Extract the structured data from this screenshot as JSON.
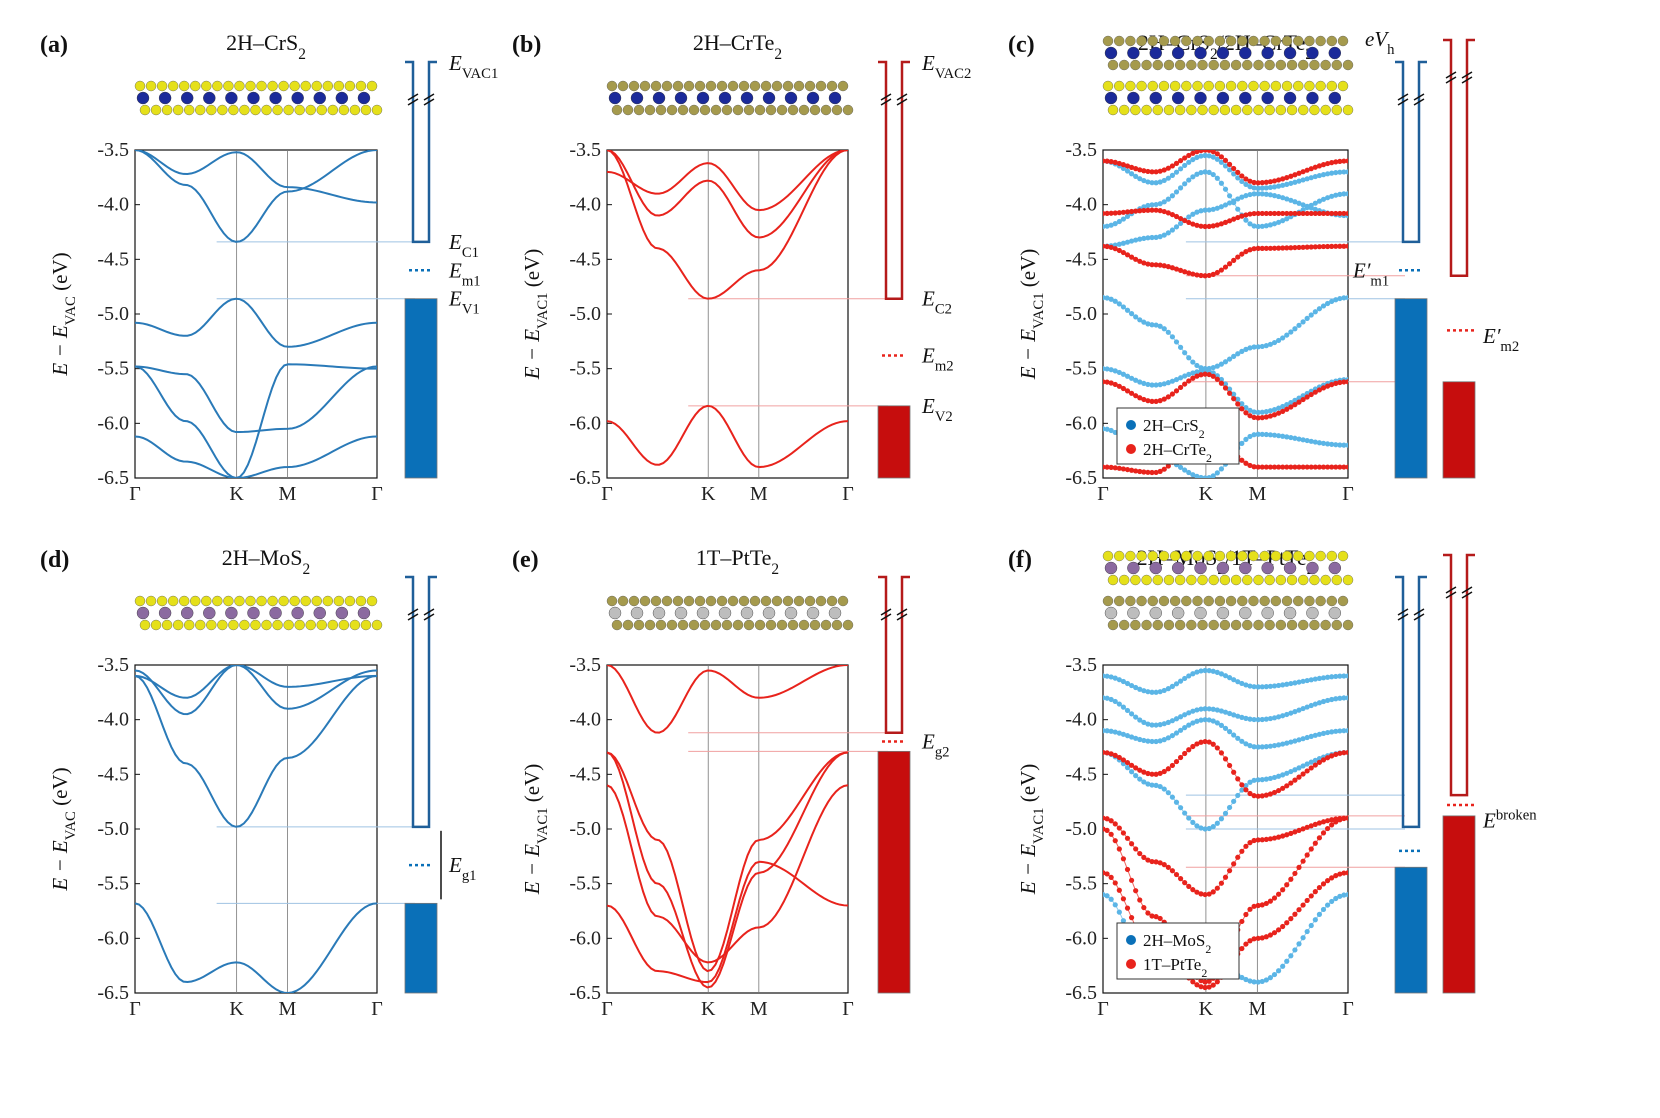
{
  "colors": {
    "blue": "#2a7ab8",
    "blue_dots": "#5bb5e6",
    "red": "#e8231c",
    "dark_blue_line": "#1f5f99",
    "dark_red_line": "#b51a1a",
    "bar_blue": "#0a70b8",
    "bar_red": "#c60d0d"
  },
  "chart_data": [
    {
      "type": "line",
      "panel": "(a)",
      "title": "2H–CrS",
      "title_sub": "2",
      "ylabel_main": "E − E",
      "ylabel_sub": "VAC",
      "ylabel_tail": " (eV)",
      "ylim": [
        -6.5,
        -3.5
      ],
      "yticks": [
        "-3.5",
        "-4.0",
        "-4.5",
        "-5.0",
        "-5.5",
        "-6.0",
        "-6.5"
      ],
      "kpoints": [
        "Γ",
        "K",
        "M",
        "Γ"
      ],
      "band_color": "blue",
      "bands": [
        [
          -3.5,
          -3.82,
          -4.34,
          -3.88,
          -3.5
        ],
        [
          -3.5,
          -3.72,
          -3.52,
          -3.84,
          -3.98
        ],
        [
          -5.08,
          -5.2,
          -4.86,
          -5.3,
          -5.08
        ],
        [
          -5.48,
          -5.55,
          -6.08,
          -6.05,
          -5.48
        ],
        [
          -6.12,
          -6.35,
          -6.5,
          -6.4,
          -6.12
        ],
        [
          -5.48,
          -5.98,
          -6.5,
          -5.46,
          -5.5
        ]
      ],
      "ref_lines": [
        -4.34,
        -4.86
      ],
      "diagram": {
        "vac_label": "E",
        "vac_sub": "VAC1",
        "levels": [
          {
            "main": "E",
            "sub": "C1",
            "y": -4.34
          },
          {
            "main": "E",
            "sub": "m1",
            "y": -4.6,
            "dotted": true
          },
          {
            "main": "E",
            "sub": "V1",
            "y": -4.86
          }
        ],
        "bar_color": "bar_blue"
      }
    },
    {
      "type": "line",
      "panel": "(b)",
      "title": "2H–CrTe",
      "title_sub": "2",
      "ylabel_main": "E − E",
      "ylabel_sub": "VAC1",
      "ylabel_tail": " (eV)",
      "ylim": [
        -6.5,
        -3.5
      ],
      "yticks": [
        "-3.5",
        "-4.0",
        "-4.5",
        "-5.0",
        "-5.5",
        "-6.0",
        "-6.5"
      ],
      "kpoints": [
        "Γ",
        "K",
        "M",
        "Γ"
      ],
      "band_color": "red",
      "bands": [
        [
          -3.5,
          -4.4,
          -4.86,
          -4.6,
          -3.5
        ],
        [
          -3.5,
          -4.1,
          -3.78,
          -4.3,
          -3.5
        ],
        [
          -3.7,
          -3.9,
          -3.62,
          -4.05,
          -3.5
        ],
        [
          -5.98,
          -6.38,
          -5.84,
          -6.4,
          -5.98
        ]
      ],
      "ref_lines": [
        -4.86,
        -5.84
      ],
      "diagram": {
        "vac_label": "E",
        "vac_sub": "VAC2",
        "levels": [
          {
            "main": "E",
            "sub": "C2",
            "y": -4.86
          },
          {
            "main": "E",
            "sub": "m2",
            "y": -5.38,
            "dotted": true
          },
          {
            "main": "E",
            "sub": "V2",
            "y": -5.84
          }
        ],
        "bar_color": "bar_red"
      }
    },
    {
      "type": "scatter",
      "panel": "(c)",
      "title": "2H–CrS",
      "title_sub": "2",
      "title2": "/2H–CrTe",
      "title2_sub": "2",
      "ylabel_main": "E − E",
      "ylabel_sub": "VAC1",
      "ylabel_tail": " (eV)",
      "ylim": [
        -6.5,
        -3.5
      ],
      "yticks": [
        "-3.5",
        "-4.0",
        "-4.5",
        "-5.0",
        "-5.5",
        "-6.0",
        "-6.5"
      ],
      "kpoints": [
        "Γ",
        "K",
        "M",
        "Γ"
      ],
      "series": [
        {
          "name": "2H–CrS",
          "sub": "2",
          "color": "blue_dots",
          "bands": [
            [
              -4.38,
              -4.3,
              -4.05,
              -3.9,
              -4.1
            ],
            [
              -3.6,
              -3.8,
              -3.55,
              -3.85,
              -3.7
            ],
            [
              -4.85,
              -5.1,
              -5.5,
              -5.3,
              -4.85
            ],
            [
              -5.5,
              -5.65,
              -5.52,
              -5.9,
              -5.6
            ],
            [
              -6.05,
              -6.3,
              -6.5,
              -6.1,
              -6.2
            ],
            [
              -4.2,
              -4.0,
              -3.7,
              -4.2,
              -3.9
            ]
          ]
        },
        {
          "name": "2H–CrTe",
          "sub": "2",
          "color": "red",
          "bands": [
            [
              -4.38,
              -4.55,
              -4.65,
              -4.4,
              -4.38
            ],
            [
              -4.08,
              -4.05,
              -4.2,
              -4.08,
              -4.08
            ],
            [
              -5.62,
              -5.8,
              -5.55,
              -5.95,
              -5.62
            ],
            [
              -3.6,
              -3.7,
              -3.5,
              -3.8,
              -3.6
            ],
            [
              -6.4,
              -6.45,
              -6.1,
              -6.4,
              -6.4
            ]
          ]
        }
      ],
      "ref_lines": [
        -4.34,
        -4.65,
        -4.86,
        -5.62
      ],
      "diagram_labels": {
        "evh": "eV",
        "evh_sub": "h",
        "em1": "E′",
        "em1_sub": "m1",
        "em2": "E′",
        "em2_sub": "m2"
      }
    },
    {
      "type": "line",
      "panel": "(d)",
      "title": "2H–MoS",
      "title_sub": "2",
      "ylabel_main": "E − E",
      "ylabel_sub": "VAC",
      "ylabel_tail": " (eV)",
      "ylim": [
        -6.5,
        -3.5
      ],
      "yticks": [
        "-3.5",
        "-4.0",
        "-4.5",
        "-5.0",
        "-5.5",
        "-6.0",
        "-6.5"
      ],
      "kpoints": [
        "Γ",
        "K",
        "M",
        "Γ"
      ],
      "band_color": "blue",
      "bands": [
        [
          -3.6,
          -4.4,
          -4.98,
          -4.35,
          -3.6
        ],
        [
          -3.55,
          -3.95,
          -3.5,
          -3.9,
          -3.55
        ],
        [
          -3.6,
          -3.8,
          -3.5,
          -3.7,
          -3.6
        ],
        [
          -5.68,
          -6.4,
          -6.22,
          -6.5,
          -5.68
        ]
      ],
      "ref_lines": [
        -4.98,
        -5.68
      ],
      "diagram": {
        "levels": [
          {
            "main": "E",
            "sub": "g1",
            "y": -5.33,
            "dotted": true
          }
        ],
        "bar_color": "bar_blue"
      }
    },
    {
      "type": "line",
      "panel": "(e)",
      "title": "1T–PtTe",
      "title_sub": "2",
      "ylabel_main": "E − E",
      "ylabel_sub": "VAC1",
      "ylabel_tail": " (eV)",
      "ylim": [
        -6.5,
        -3.5
      ],
      "yticks": [
        "-3.5",
        "-4.0",
        "-4.5",
        "-5.0",
        "-5.5",
        "-6.0",
        "-6.5"
      ],
      "kpoints": [
        "Γ",
        "K",
        "M",
        "Γ"
      ],
      "band_color": "red",
      "bands": [
        [
          -4.3,
          -5.1,
          -6.3,
          -5.1,
          -4.3
        ],
        [
          -4.3,
          -5.5,
          -6.45,
          -5.4,
          -4.3
        ],
        [
          -4.6,
          -5.8,
          -6.22,
          -5.9,
          -4.6
        ],
        [
          -5.7,
          -6.3,
          -6.4,
          -5.3,
          -5.7
        ],
        [
          -3.5,
          -4.12,
          -3.55,
          -3.8,
          -3.5
        ]
      ],
      "ref_lines": [
        -4.12,
        -4.29
      ],
      "diagram": {
        "levels": [
          {
            "main": "E",
            "sub": "g2",
            "y": -4.2,
            "dotted": true
          }
        ],
        "bar_color": "bar_red"
      }
    },
    {
      "type": "scatter",
      "panel": "(f)",
      "title": "2H–MoS",
      "title_sub": "2",
      "title2": "/1T–PtTe",
      "title2_sub": "2",
      "ylabel_main": "E − E",
      "ylabel_sub": "VAC1",
      "ylabel_tail": " (eV)",
      "ylim": [
        -6.5,
        -3.5
      ],
      "yticks": [
        "-3.5",
        "-4.0",
        "-4.5",
        "-5.0",
        "-5.5",
        "-6.0",
        "-6.5"
      ],
      "kpoints": [
        "Γ",
        "K",
        "M",
        "Γ"
      ],
      "series": [
        {
          "name": "2H–MoS",
          "sub": "2",
          "color": "blue_dots",
          "bands": [
            [
              -4.3,
              -4.6,
              -5.0,
              -4.55,
              -4.3
            ],
            [
              -3.8,
              -4.05,
              -3.9,
              -4.0,
              -3.8
            ],
            [
              -3.6,
              -3.75,
              -3.55,
              -3.7,
              -3.6
            ],
            [
              -5.6,
              -6.3,
              -6.2,
              -6.4,
              -5.6
            ],
            [
              -4.1,
              -4.2,
              -4.0,
              -4.25,
              -4.1
            ]
          ]
        },
        {
          "name": "1T–PtTe",
          "sub": "2",
          "color": "red",
          "bands": [
            [
              -4.3,
              -4.5,
              -4.2,
              -4.7,
              -4.3
            ],
            [
              -4.9,
              -5.3,
              -5.6,
              -5.1,
              -4.9
            ],
            [
              -5.0,
              -5.8,
              -6.4,
              -5.7,
              -4.9
            ],
            [
              -5.4,
              -6.1,
              -6.45,
              -6.0,
              -5.4
            ]
          ]
        }
      ],
      "ref_lines": [
        -4.69,
        -4.88,
        -5.0,
        -5.35
      ],
      "legend": true,
      "diagram_labels": {
        "ebroken": "E",
        "ebroken_sup": "broken"
      }
    }
  ]
}
